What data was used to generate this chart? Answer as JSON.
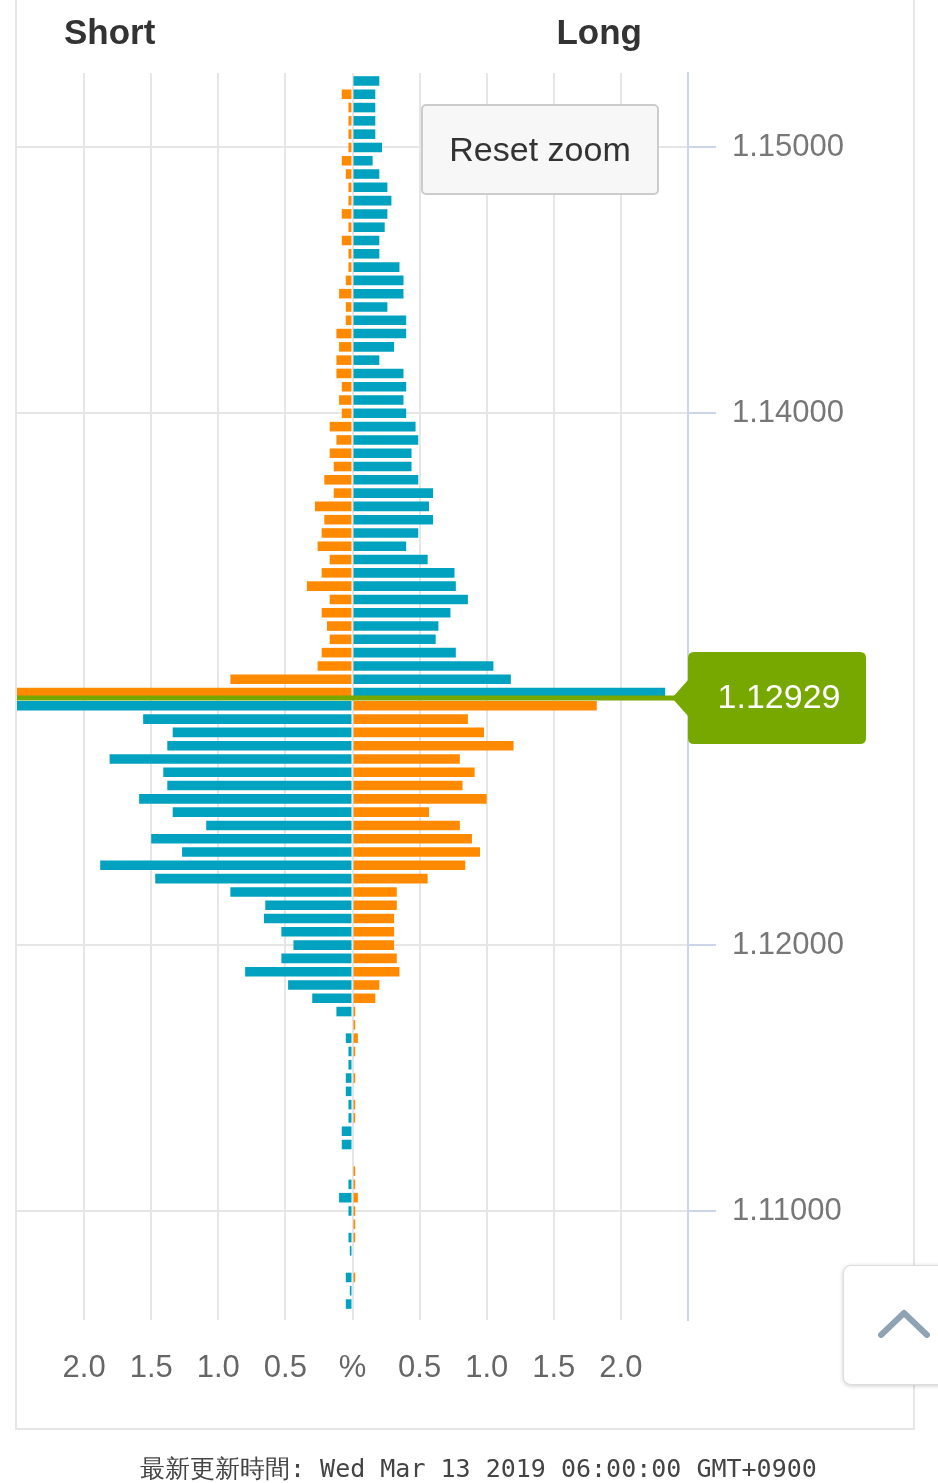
{
  "chart_data": {
    "type": "bar",
    "orientation": "horizontal",
    "stacked": true,
    "grid": true,
    "x": [
      1.1525,
      1.152,
      1.1515,
      1.151,
      1.1505,
      1.15,
      1.1495,
      1.149,
      1.1485,
      1.148,
      1.1475,
      1.147,
      1.1465,
      1.146,
      1.1455,
      1.145,
      1.1445,
      1.144,
      1.1435,
      1.143,
      1.1425,
      1.142,
      1.1415,
      1.141,
      1.1405,
      1.14,
      1.1395,
      1.139,
      1.1385,
      1.138,
      1.1375,
      1.137,
      1.1365,
      1.136,
      1.1355,
      1.135,
      1.1345,
      1.134,
      1.1335,
      1.133,
      1.1325,
      1.132,
      1.1315,
      1.131,
      1.1305,
      1.13,
      1.1295,
      1.129,
      1.1285,
      1.128,
      1.1275,
      1.127,
      1.1265,
      1.126,
      1.1255,
      1.125,
      1.1245,
      1.124,
      1.1235,
      1.123,
      1.1225,
      1.122,
      1.1215,
      1.121,
      1.1205,
      1.12,
      1.1195,
      1.119,
      1.1185,
      1.118,
      1.1175,
      1.117,
      1.1165,
      1.116,
      1.1155,
      1.115,
      1.1145,
      1.114,
      1.1135,
      1.113,
      1.1125,
      1.112,
      1.1115,
      1.111,
      1.1105,
      1.11,
      1.1095,
      1.109,
      1.1085,
      1.108,
      1.1075,
      1.107,
      1.1065
    ],
    "series": [
      {
        "color": "#ff8a00",
        "values": [
          null,
          -0.08,
          -0.03,
          -0.03,
          -0.03,
          -0.03,
          -0.08,
          -0.05,
          -0.03,
          -0.03,
          -0.08,
          -0.03,
          -0.08,
          -0.03,
          -0.03,
          -0.05,
          -0.1,
          -0.05,
          -0.05,
          -0.12,
          -0.1,
          -0.12,
          -0.12,
          -0.08,
          -0.1,
          -0.08,
          -0.17,
          -0.12,
          -0.17,
          -0.14,
          -0.21,
          -0.14,
          -0.28,
          -0.21,
          -0.23,
          -0.26,
          -0.17,
          -0.23,
          -0.34,
          -0.17,
          -0.23,
          -0.19,
          -0.17,
          -0.23,
          -0.26,
          -0.91,
          -2.5,
          1.82,
          0.86,
          0.98,
          1.2,
          0.8,
          0.91,
          0.82,
          1.0,
          0.57,
          0.8,
          0.89,
          0.95,
          0.84,
          0.56,
          0.33,
          0.33,
          0.31,
          0.31,
          0.31,
          0.33,
          0.35,
          0.2,
          0.17,
          0.02,
          0.02,
          0.04,
          0.02,
          null,
          0.02,
          null,
          0.02,
          0.02,
          null,
          null,
          null,
          0.02,
          0.02,
          0.04,
          0.02,
          0.02,
          0.02,
          null,
          null,
          0.02,
          null,
          null
        ]
      },
      {
        "color": "#00a2bf",
        "values": [
          0.2,
          0.17,
          0.17,
          0.17,
          0.17,
          0.22,
          0.15,
          0.2,
          0.26,
          0.29,
          0.26,
          0.24,
          0.2,
          0.2,
          0.35,
          0.38,
          0.38,
          0.26,
          0.4,
          0.4,
          0.31,
          0.2,
          0.38,
          0.4,
          0.38,
          0.4,
          0.47,
          0.49,
          0.44,
          0.44,
          0.49,
          0.6,
          0.57,
          0.6,
          0.49,
          0.4,
          0.56,
          0.76,
          0.77,
          0.86,
          0.73,
          0.64,
          0.62,
          0.77,
          1.05,
          1.18,
          2.33,
          -2.5,
          -1.56,
          -1.34,
          -1.38,
          -1.81,
          -1.41,
          -1.38,
          -1.59,
          -1.34,
          -1.09,
          -1.5,
          -1.27,
          -1.88,
          -1.47,
          -0.91,
          -0.65,
          -0.66,
          -0.53,
          -0.44,
          -0.53,
          -0.8,
          -0.48,
          -0.3,
          -0.12,
          null,
          -0.05,
          -0.03,
          -0.03,
          -0.05,
          -0.05,
          -0.03,
          -0.03,
          -0.08,
          -0.08,
          null,
          null,
          -0.03,
          -0.1,
          -0.03,
          null,
          -0.03,
          -0.02,
          null,
          -0.05,
          -0.02,
          -0.05
        ]
      }
    ],
    "xlim": [
      -2.5,
      2.5
    ],
    "xticks": [
      {
        "value": -2,
        "label": "2.0"
      },
      {
        "value": -1.5,
        "label": "1.5"
      },
      {
        "value": -1,
        "label": "1.0"
      },
      {
        "value": -0.5,
        "label": "0.5"
      },
      {
        "value": 0,
        "label": "%"
      },
      {
        "value": 0.5,
        "label": "0.5"
      },
      {
        "value": 1,
        "label": "1.0"
      },
      {
        "value": 1.5,
        "label": "1.5"
      },
      {
        "value": 2,
        "label": "2.0"
      }
    ],
    "ylim": [
      1.1059,
      1.1528
    ],
    "yticks": [
      {
        "value": 1.11,
        "label": "1.11000"
      },
      {
        "value": 1.12,
        "label": "1.12000"
      },
      {
        "value": 1.14,
        "label": "1.14000"
      },
      {
        "value": 1.15,
        "label": "1.15000"
      }
    ],
    "ref_lines": [
      {
        "axis": "y",
        "value": 1.12929,
        "label": "1.12929",
        "color": "#77a800"
      }
    ],
    "annotations": [
      "Short",
      "Long",
      "Reset zoom",
      "最新更新時間: Wed Mar 13 2019 06:00:00 GMT+0900"
    ]
  }
}
